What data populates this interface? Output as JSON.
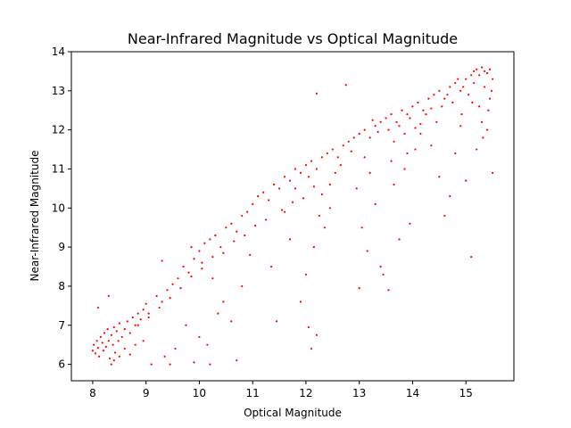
{
  "chart_data": {
    "type": "scatter",
    "title": "Near-Infrared Magnitude vs Optical Magnitude",
    "xlabel": "Optical Magnitude",
    "ylabel": "Near-Infrared Magnitude",
    "xlim": [
      7.6,
      15.9
    ],
    "ylim": [
      5.58,
      14.0
    ],
    "xticks": [
      8,
      9,
      10,
      11,
      12,
      13,
      14,
      15
    ],
    "yticks": [
      6,
      7,
      8,
      9,
      10,
      11,
      12,
      13,
      14
    ],
    "grid": false,
    "legend": "none",
    "marker_color": "#ff0000",
    "series": [
      {
        "points": [
          [
            8.0,
            6.35
          ],
          [
            8.02,
            6.5
          ],
          [
            8.05,
            6.28
          ],
          [
            8.08,
            6.6
          ],
          [
            8.1,
            6.42
          ],
          [
            8.12,
            6.2
          ],
          [
            8.15,
            6.7
          ],
          [
            8.18,
            6.55
          ],
          [
            8.2,
            6.35
          ],
          [
            8.22,
            6.8
          ],
          [
            8.25,
            6.45
          ],
          [
            8.28,
            6.9
          ],
          [
            8.3,
            6.6
          ],
          [
            8.32,
            6.15
          ],
          [
            8.35,
            6.75
          ],
          [
            8.38,
            6.5
          ],
          [
            8.4,
            6.95
          ],
          [
            8.42,
            6.3
          ],
          [
            8.45,
            6.85
          ],
          [
            8.48,
            6.6
          ],
          [
            8.5,
            7.05
          ],
          [
            8.55,
            6.7
          ],
          [
            8.6,
            6.9
          ],
          [
            8.65,
            7.1
          ],
          [
            8.7,
            6.8
          ],
          [
            8.75,
            7.2
          ],
          [
            8.8,
            7.0
          ],
          [
            8.85,
            7.3
          ],
          [
            8.9,
            7.15
          ],
          [
            8.95,
            7.4
          ],
          [
            9.0,
            7.55
          ],
          [
            9.05,
            7.3
          ],
          [
            8.1,
            7.45
          ],
          [
            8.3,
            7.75
          ],
          [
            8.35,
            6.0
          ],
          [
            8.4,
            6.1
          ],
          [
            8.5,
            6.2
          ],
          [
            8.6,
            6.4
          ],
          [
            8.7,
            6.25
          ],
          [
            8.8,
            6.5
          ],
          [
            8.95,
            6.6
          ],
          [
            9.1,
            6.0
          ],
          [
            9.2,
            7.75
          ],
          [
            9.3,
            7.6
          ],
          [
            9.4,
            7.9
          ],
          [
            9.5,
            8.05
          ],
          [
            9.45,
            6.0
          ],
          [
            9.55,
            6.4
          ],
          [
            9.6,
            8.2
          ],
          [
            9.7,
            8.5
          ],
          [
            9.8,
            8.35
          ],
          [
            9.9,
            8.7
          ],
          [
            10.0,
            8.9
          ],
          [
            10.05,
            8.6
          ],
          [
            10.1,
            9.1
          ],
          [
            10.2,
            9.2
          ],
          [
            10.3,
            9.3
          ],
          [
            10.4,
            9.0
          ],
          [
            10.5,
            9.5
          ],
          [
            10.6,
            9.6
          ],
          [
            10.7,
            9.4
          ],
          [
            10.8,
            9.8
          ],
          [
            10.9,
            9.9
          ],
          [
            11.0,
            10.1
          ],
          [
            9.3,
            8.65
          ],
          [
            9.85,
            9.0
          ],
          [
            10.25,
            8.2
          ],
          [
            10.45,
            7.6
          ],
          [
            10.6,
            7.1
          ],
          [
            10.7,
            6.1
          ],
          [
            10.35,
            7.3
          ],
          [
            10.15,
            6.5
          ],
          [
            10.0,
            6.7
          ],
          [
            9.75,
            7.0
          ],
          [
            9.35,
            6.2
          ],
          [
            9.9,
            6.05
          ],
          [
            10.2,
            6.0
          ],
          [
            10.8,
            8.0
          ],
          [
            10.95,
            8.8
          ],
          [
            11.1,
            10.3
          ],
          [
            11.2,
            10.4
          ],
          [
            11.3,
            10.2
          ],
          [
            11.4,
            10.6
          ],
          [
            11.5,
            10.5
          ],
          [
            11.6,
            10.8
          ],
          [
            11.7,
            10.7
          ],
          [
            11.8,
            11.0
          ],
          [
            11.9,
            10.9
          ],
          [
            12.0,
            11.1
          ],
          [
            12.05,
            10.8
          ],
          [
            12.1,
            11.2
          ],
          [
            12.2,
            11.0
          ],
          [
            12.3,
            11.3
          ],
          [
            12.4,
            11.4
          ],
          [
            12.5,
            11.5
          ],
          [
            12.6,
            11.3
          ],
          [
            11.35,
            8.5
          ],
          [
            11.45,
            7.1
          ],
          [
            11.7,
            9.2
          ],
          [
            11.9,
            7.6
          ],
          [
            12.05,
            6.95
          ],
          [
            12.1,
            6.4
          ],
          [
            12.2,
            6.75
          ],
          [
            12.0,
            8.3
          ],
          [
            12.15,
            9.0
          ],
          [
            12.25,
            9.8
          ],
          [
            12.35,
            9.5
          ],
          [
            12.45,
            10.0
          ],
          [
            12.2,
            12.93
          ],
          [
            12.75,
            13.15
          ],
          [
            11.6,
            9.9
          ],
          [
            11.8,
            10.5
          ],
          [
            12.7,
            11.6
          ],
          [
            12.8,
            11.7
          ],
          [
            12.9,
            11.8
          ],
          [
            13.0,
            11.9
          ],
          [
            13.1,
            12.0
          ],
          [
            13.2,
            11.8
          ],
          [
            13.3,
            12.1
          ],
          [
            13.4,
            12.2
          ],
          [
            13.5,
            12.3
          ],
          [
            13.6,
            12.4
          ],
          [
            13.7,
            12.2
          ],
          [
            13.8,
            12.5
          ],
          [
            13.9,
            12.4
          ],
          [
            14.0,
            12.6
          ],
          [
            14.1,
            12.7
          ],
          [
            14.2,
            12.5
          ],
          [
            12.95,
            10.5
          ],
          [
            13.05,
            9.5
          ],
          [
            13.15,
            8.9
          ],
          [
            13.3,
            10.1
          ],
          [
            13.45,
            8.3
          ],
          [
            13.55,
            7.9
          ],
          [
            13.65,
            10.6
          ],
          [
            13.75,
            9.2
          ],
          [
            13.85,
            11.0
          ],
          [
            13.95,
            9.6
          ],
          [
            13.0,
            7.95
          ],
          [
            13.4,
            8.5
          ],
          [
            13.2,
            10.9
          ],
          [
            13.6,
            11.2
          ],
          [
            13.1,
            11.3
          ],
          [
            13.9,
            11.4
          ],
          [
            14.3,
            12.8
          ],
          [
            14.4,
            12.9
          ],
          [
            14.5,
            13.0
          ],
          [
            14.6,
            12.8
          ],
          [
            14.7,
            13.1
          ],
          [
            14.8,
            13.2
          ],
          [
            14.9,
            13.0
          ],
          [
            15.0,
            13.3
          ],
          [
            15.1,
            13.4
          ],
          [
            15.15,
            13.5
          ],
          [
            15.2,
            13.55
          ],
          [
            15.25,
            13.4
          ],
          [
            15.3,
            13.6
          ],
          [
            15.35,
            13.5
          ],
          [
            15.4,
            13.45
          ],
          [
            15.45,
            13.55
          ],
          [
            14.35,
            11.6
          ],
          [
            14.5,
            10.8
          ],
          [
            14.6,
            9.8
          ],
          [
            14.7,
            10.3
          ],
          [
            14.8,
            11.4
          ],
          [
            14.9,
            12.1
          ],
          [
            15.0,
            10.7
          ],
          [
            15.1,
            8.75
          ],
          [
            15.2,
            11.5
          ],
          [
            15.3,
            12.2
          ],
          [
            15.4,
            12.0
          ],
          [
            15.5,
            10.9
          ],
          [
            15.25,
            12.6
          ],
          [
            15.45,
            12.8
          ],
          [
            14.45,
            12.2
          ],
          [
            14.05,
            11.5
          ],
          [
            14.15,
            11.9
          ],
          [
            14.25,
            12.4
          ],
          [
            14.55,
            12.6
          ],
          [
            14.65,
            12.9
          ],
          [
            14.75,
            12.7
          ],
          [
            14.85,
            13.3
          ],
          [
            14.95,
            13.1
          ],
          [
            15.05,
            12.9
          ],
          [
            15.15,
            13.2
          ],
          [
            15.35,
            13.1
          ],
          [
            15.5,
            13.3
          ],
          [
            15.48,
            13.0
          ],
          [
            15.42,
            12.5
          ],
          [
            15.32,
            11.8
          ],
          [
            15.12,
            12.7
          ],
          [
            14.92,
            12.4
          ],
          [
            13.25,
            12.25
          ],
          [
            13.35,
            11.95
          ],
          [
            13.55,
            12.0
          ],
          [
            13.75,
            12.1
          ],
          [
            13.95,
            12.3
          ],
          [
            14.15,
            12.15
          ],
          [
            14.35,
            12.55
          ],
          [
            13.65,
            11.7
          ],
          [
            13.85,
            11.9
          ],
          [
            14.05,
            12.05
          ],
          [
            12.55,
            10.9
          ],
          [
            12.65,
            11.1
          ],
          [
            12.85,
            11.45
          ],
          [
            12.45,
            10.6
          ],
          [
            12.3,
            10.35
          ],
          [
            12.15,
            10.55
          ],
          [
            11.95,
            10.25
          ],
          [
            11.75,
            10.15
          ],
          [
            11.55,
            9.95
          ],
          [
            11.25,
            9.7
          ],
          [
            11.05,
            9.55
          ],
          [
            10.85,
            9.3
          ],
          [
            10.65,
            9.15
          ],
          [
            10.45,
            8.85
          ],
          [
            10.25,
            8.75
          ],
          [
            10.05,
            8.45
          ],
          [
            9.85,
            8.25
          ],
          [
            9.65,
            7.95
          ],
          [
            9.45,
            7.7
          ],
          [
            9.25,
            7.45
          ],
          [
            9.05,
            7.2
          ],
          [
            8.85,
            7.0
          ]
        ]
      }
    ]
  }
}
